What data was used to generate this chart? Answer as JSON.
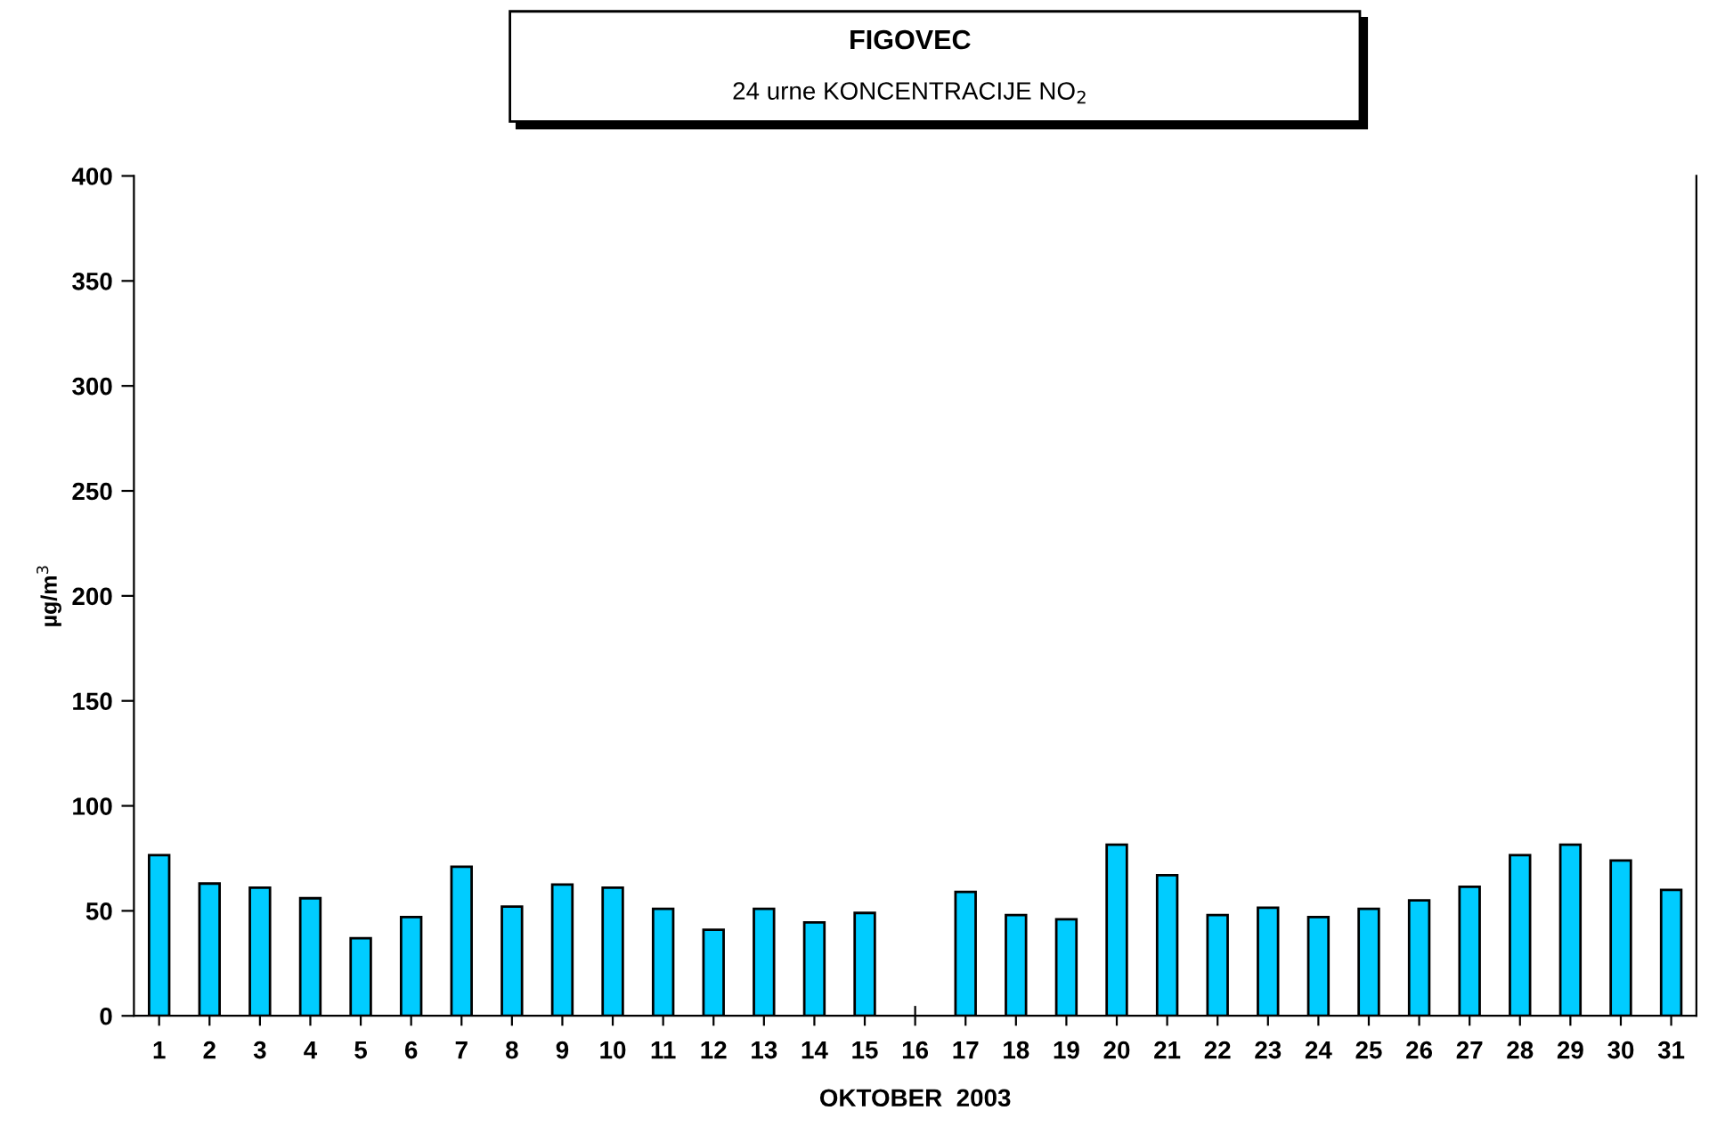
{
  "chart_data": {
    "type": "bar",
    "title": "FIGOVEC",
    "subtitle": "24 urne KONCENTRACIJE NO$_{2}$",
    "xlabel": "OKTOBER  2003",
    "ylabel": "µg/m$^{3}$",
    "categories": [
      "1",
      "2",
      "3",
      "4",
      "5",
      "6",
      "7",
      "8",
      "9",
      "10",
      "11",
      "12",
      "13",
      "14",
      "15",
      "16",
      "17",
      "18",
      "19",
      "20",
      "21",
      "22",
      "23",
      "24",
      "25",
      "26",
      "27",
      "28",
      "29",
      "30",
      "31"
    ],
    "values": [
      76.5,
      63,
      61,
      56,
      37,
      47,
      71,
      52,
      62.5,
      61,
      51,
      41,
      51,
      44.5,
      49,
      null,
      59,
      48,
      46,
      81.5,
      67,
      48,
      51.5,
      47,
      51,
      55,
      61.5,
      76.5,
      81.5,
      74,
      60
    ],
    "color": "#00ccff",
    "ylim": [
      0,
      400
    ],
    "yticks": [
      0,
      50,
      100,
      150,
      200,
      250,
      300,
      350,
      400
    ],
    "grid": false,
    "legend": false
  }
}
